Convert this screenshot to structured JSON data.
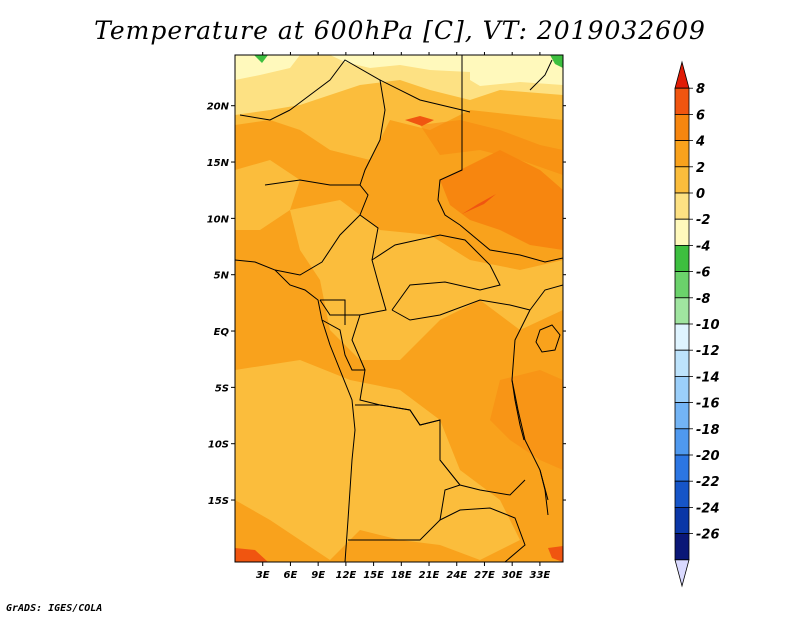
{
  "title": "Temperature at 600hPa [C], VT: 2019032609",
  "footer": "GrADS: IGES/COLA",
  "map": {
    "lon_range": [
      0,
      35.5
    ],
    "lat_range": [
      -20.5,
      24.5
    ],
    "lon_ticks": [
      "3E",
      "6E",
      "9E",
      "12E",
      "15E",
      "18E",
      "21E",
      "24E",
      "27E",
      "30E",
      "33E"
    ],
    "lat_ticks": [
      "20N",
      "15N",
      "10N",
      "5N",
      "EQ",
      "5S",
      "10S",
      "15S"
    ]
  },
  "colorbar": {
    "labels": [
      "8",
      "6",
      "4",
      "2",
      "0",
      "-2",
      "-4",
      "-6",
      "-8",
      "-10",
      "-12",
      "-14",
      "-16",
      "-18",
      "-20",
      "-22",
      "-24",
      "-26"
    ],
    "colors": [
      "#e01c06",
      "#f05510",
      "#f7860f",
      "#f9a21c",
      "#fbbd3c",
      "#fde183",
      "#fff9bc",
      "#3dbf3f",
      "#6bd26b",
      "#a0e5a0",
      "#dff4ff",
      "#bde3fc",
      "#9bcffa",
      "#73b4f5",
      "#4f99ef",
      "#2c76e3",
      "#1655c8",
      "#0a37a7",
      "#0a1777",
      "#dadaff"
    ]
  }
}
